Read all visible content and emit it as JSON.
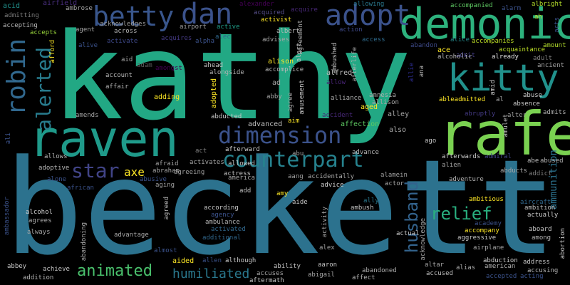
{
  "words": [
    {
      "text": "kathy",
      "color": "#22a884"
    },
    {
      "text": "beckett",
      "color": "#2c728e"
    },
    {
      "text": "rafe",
      "color": "#7ad151"
    },
    {
      "text": "raven",
      "color": "#1f9a8a"
    },
    {
      "text": "demonic",
      "color": "#2db27d"
    },
    {
      "text": "kitty",
      "color": "#21918c"
    },
    {
      "text": "adopt",
      "color": "#3b528b"
    },
    {
      "text": "dan",
      "color": "#3b528b"
    },
    {
      "text": "betty",
      "color": "#39568c"
    },
    {
      "text": "dimension",
      "color": "#3b528b"
    },
    {
      "text": "robin",
      "color": "#31688e"
    },
    {
      "text": "counterpart",
      "color": "#26828e"
    },
    {
      "text": "alerted",
      "color": "#287c8e"
    },
    {
      "text": "star",
      "color": "#414487"
    },
    {
      "text": "axe",
      "color": "#fde725"
    },
    {
      "text": "relief",
      "color": "#29af7f"
    },
    {
      "text": "husband",
      "color": "#33638d"
    },
    {
      "text": "animated",
      "color": "#4ac16d"
    },
    {
      "text": "humiliated",
      "color": "#2a788e"
    },
    {
      "text": "ammunition",
      "color": "#2c728e"
    },
    {
      "text": "acid",
      "color": "#21918c"
    },
    {
      "text": "airfield",
      "color": "#472d7b"
    },
    {
      "text": "admitting",
      "color": "#7e7e7e"
    },
    {
      "text": "accepting",
      "color": "#b8b8b8"
    },
    {
      "text": "accepts",
      "color": "#9bd93c"
    },
    {
      "text": "ambrose",
      "color": "#a8a8a8"
    },
    {
      "text": "acknowledges",
      "color": "#9a9a9a"
    },
    {
      "text": "agent",
      "color": "#a5a5a5"
    },
    {
      "text": "across",
      "color": "#b0b0b0"
    },
    {
      "text": "airport",
      "color": "#a0a0a0"
    },
    {
      "text": "active",
      "color": "#1f9e89"
    },
    {
      "text": "alec",
      "color": "#31688e"
    },
    {
      "text": "alexander",
      "color": "#440154"
    },
    {
      "text": "acquired",
      "color": "#58508d"
    },
    {
      "text": "acquire",
      "color": "#482878"
    },
    {
      "text": "activist",
      "color": "#fde725"
    },
    {
      "text": "allowing",
      "color": "#2a788e"
    },
    {
      "text": "accompanied",
      "color": "#5ec962"
    },
    {
      "text": "alarm",
      "color": "#3b528b"
    },
    {
      "text": "albright",
      "color": "#b5de2b"
    },
    {
      "text": "ah",
      "color": "#c2df23"
    },
    {
      "text": "action",
      "color": "#3e4989"
    },
    {
      "text": "access",
      "color": "#2f6c8e"
    },
    {
      "text": "abandon",
      "color": "#3e4a89"
    },
    {
      "text": "alice",
      "color": "#238a8d"
    },
    {
      "text": "accompanies",
      "color": "#bddf26"
    },
    {
      "text": "amount",
      "color": "#b4de2c"
    },
    {
      "text": "alive",
      "color": "#3b528b"
    },
    {
      "text": "activate",
      "color": "#3e4989"
    },
    {
      "text": "acquires",
      "color": "#443983"
    },
    {
      "text": "alpha",
      "color": "#3b528b"
    },
    {
      "text": "advises",
      "color": "#a6a6a6"
    },
    {
      "text": "albert",
      "color": "#b9b9b9"
    },
    {
      "text": "ace",
      "color": "#fde725"
    },
    {
      "text": "admit",
      "color": "#433e85"
    },
    {
      "text": "accompanies",
      "color": "#bddf26"
    },
    {
      "text": "acquaintance",
      "color": "#bddf26"
    },
    {
      "text": "adult",
      "color": "#7d7d7d"
    },
    {
      "text": "ancient",
      "color": "#a1a1a1"
    },
    {
      "text": "aid",
      "color": "#a0a0a0"
    },
    {
      "text": "adam",
      "color": "#5b5b5b"
    },
    {
      "text": "amongst",
      "color": "#440154"
    },
    {
      "text": "ahead",
      "color": "#c0c0c0"
    },
    {
      "text": "alongside",
      "color": "#b1b1b1"
    },
    {
      "text": "alison",
      "color": "#fde725"
    },
    {
      "text": "accomplice",
      "color": "#b8b8b8"
    },
    {
      "text": "afterlife",
      "color": "#b0b0b0"
    },
    {
      "text": "allie",
      "color": "#2c2c8e"
    },
    {
      "text": "already",
      "color": "#e0e0e0"
    },
    {
      "text": "alcoholic",
      "color": "#bcbcbc"
    },
    {
      "text": "account",
      "color": "#b8b8b8"
    },
    {
      "text": "affair",
      "color": "#b3b3b3"
    },
    {
      "text": "ad",
      "color": "#a9a9a9"
    },
    {
      "text": "alfred",
      "color": "#bababa"
    },
    {
      "text": "allow",
      "color": "#482475"
    },
    {
      "text": "adopted",
      "color": "#fde725"
    },
    {
      "text": "ableadmitted",
      "color": "#fde725"
    },
    {
      "text": "al",
      "color": "#a7a7a7"
    },
    {
      "text": "abuse",
      "color": "#d0d0d0"
    },
    {
      "text": "absence",
      "color": "#cbcbcb"
    },
    {
      "text": "admits",
      "color": "#adadad"
    },
    {
      "text": "adding",
      "color": "#fde725"
    },
    {
      "text": "abby",
      "color": "#a8a8a8"
    },
    {
      "text": "alliance",
      "color": "#b0b0b0"
    },
    {
      "text": "allison",
      "color": "#a6a6a6"
    },
    {
      "text": "amnesia",
      "color": "#adadad"
    },
    {
      "text": "abruptly",
      "color": "#443a83"
    },
    {
      "text": "alter",
      "color": "#9d9d9d"
    },
    {
      "text": "amends",
      "color": "#a5a5a5"
    },
    {
      "text": "abducted",
      "color": "#c9c9c9"
    },
    {
      "text": "aim",
      "color": "#fde725"
    },
    {
      "text": "accident",
      "color": "#482878"
    },
    {
      "text": "aged",
      "color": "#fde725"
    },
    {
      "text": "alley",
      "color": "#aaaaaa"
    },
    {
      "text": "affection",
      "color": "#5ec962"
    },
    {
      "text": "also",
      "color": "#a8a8a8"
    },
    {
      "text": "advanced",
      "color": "#bfbfbf"
    },
    {
      "text": "ago",
      "color": "#c2c2c2"
    },
    {
      "text": "afford",
      "color": "#fde725"
    },
    {
      "text": "alien",
      "color": "#a3a3a3"
    },
    {
      "text": "afterward",
      "color": "#cdcdcd"
    },
    {
      "text": "act",
      "color": "#7f7f7f"
    },
    {
      "text": "abu",
      "color": "#a0a0a0"
    },
    {
      "text": "advance",
      "color": "#b6b6b6"
    },
    {
      "text": "afterwards",
      "color": "#c6c6c6"
    },
    {
      "text": "admiral",
      "color": "#414487"
    },
    {
      "text": "abe",
      "color": "#bfbfbf"
    },
    {
      "text": "abused",
      "color": "#b5b5b5"
    },
    {
      "text": "allows",
      "color": "#b2b2b2"
    },
    {
      "text": "adoptive",
      "color": "#bababa"
    },
    {
      "text": "afraid",
      "color": "#a1a1a1"
    },
    {
      "text": "abraham",
      "color": "#a7a7a7"
    },
    {
      "text": "activates",
      "color": "#a5a5a5"
    },
    {
      "text": "allowed",
      "color": "#c9c9c9"
    },
    {
      "text": "actress",
      "color": "#c1c1c1"
    },
    {
      "text": "accidentally",
      "color": "#a7a7a7"
    },
    {
      "text": "alamein",
      "color": "#a0a0a0"
    },
    {
      "text": "aang",
      "color": "#9f9f9f"
    },
    {
      "text": "ambitious",
      "color": "#fde725"
    },
    {
      "text": "abducts",
      "color": "#a9a9a9"
    },
    {
      "text": "addict",
      "color": "#7b7b7b"
    },
    {
      "text": "alone",
      "color": "#3b528b"
    },
    {
      "text": "abusive",
      "color": "#3b528b"
    },
    {
      "text": "african",
      "color": "#3b528b"
    },
    {
      "text": "agreeing",
      "color": "#9d9d9d"
    },
    {
      "text": "aging",
      "color": "#a1a1a1"
    },
    {
      "text": "america",
      "color": "#a5a5a5"
    },
    {
      "text": "adventure",
      "color": "#b3b3b3"
    },
    {
      "text": "advice",
      "color": "#cfcfcf"
    },
    {
      "text": "actor",
      "color": "#a6a6a6"
    },
    {
      "text": "add",
      "color": "#c2c2c2"
    },
    {
      "text": "amy",
      "color": "#fde725"
    },
    {
      "text": "aide",
      "color": "#c6c6c6"
    },
    {
      "text": "agency",
      "color": "#3b528b"
    },
    {
      "text": "ambulance",
      "color": "#b4b4b4"
    },
    {
      "text": "according",
      "color": "#c7c7c7"
    },
    {
      "text": "activated",
      "color": "#31688e"
    },
    {
      "text": "additional",
      "color": "#31688e"
    },
    {
      "text": "ambitious",
      "color": "#fde725"
    },
    {
      "text": "academy",
      "color": "#3b528b"
    },
    {
      "text": "accompany",
      "color": "#fde725"
    },
    {
      "text": "aggressive",
      "color": "#c8c8c8"
    },
    {
      "text": "aircraft",
      "color": "#31688e"
    },
    {
      "text": "ambition",
      "color": "#c0c0c0"
    },
    {
      "text": "actually",
      "color": "#cdcdcd"
    },
    {
      "text": "aboard",
      "color": "#c4c4c4"
    },
    {
      "text": "among",
      "color": "#b5b5b5"
    },
    {
      "text": "alcohol",
      "color": "#cfcfcf"
    },
    {
      "text": "agrees",
      "color": "#aaaaaa"
    },
    {
      "text": "always",
      "color": "#a4a4a4"
    },
    {
      "text": "advantage",
      "color": "#a9a9a9"
    },
    {
      "text": "almost",
      "color": "#3b528b"
    },
    {
      "text": "allen",
      "color": "#3b528b"
    },
    {
      "text": "although",
      "color": "#c8c8c8"
    },
    {
      "text": "aided",
      "color": "#fde725"
    },
    {
      "text": "ability",
      "color": "#c1c1c1"
    },
    {
      "text": "accuses",
      "color": "#a7a7a7"
    },
    {
      "text": "aftermath",
      "color": "#c7c7c7"
    },
    {
      "text": "abandoned",
      "color": "#adadad"
    },
    {
      "text": "affect",
      "color": "#b2b2b2"
    },
    {
      "text": "aaron",
      "color": "#c2c2c2"
    },
    {
      "text": "alex",
      "color": "#a2a2a2"
    },
    {
      "text": "abigail",
      "color": "#a9a9a9"
    },
    {
      "text": "actual",
      "color": "#c8c8c8"
    },
    {
      "text": "altar",
      "color": "#a6a6a6"
    },
    {
      "text": "accused",
      "color": "#bfbfbf"
    },
    {
      "text": "alias",
      "color": "#aaaaaa"
    },
    {
      "text": "american",
      "color": "#b2b2b2"
    },
    {
      "text": "abduction",
      "color": "#cecece"
    },
    {
      "text": "accepted",
      "color": "#3b528b"
    },
    {
      "text": "acting",
      "color": "#3b528b"
    },
    {
      "text": "address",
      "color": "#c5c5c5"
    },
    {
      "text": "accusing",
      "color": "#b5b5b5"
    },
    {
      "text": "airplane",
      "color": "#a6a6a6"
    },
    {
      "text": "abbey",
      "color": "#c8c8c8"
    },
    {
      "text": "achieve",
      "color": "#c7c7c7"
    },
    {
      "text": "addition",
      "color": "#b1b1b1"
    },
    {
      "text": "ally",
      "color": "#2a788e"
    },
    {
      "text": "ambush",
      "color": "#c3c3c3"
    },
    {
      "text": "ambassador",
      "color": "#3b528b"
    },
    {
      "text": "abandoning",
      "color": "#aaaaaa"
    },
    {
      "text": "agreed",
      "color": "#b5b5b5"
    },
    {
      "text": "activity",
      "color": "#a5a5a5"
    },
    {
      "text": "acknowledge",
      "color": "#a0a0a0"
    },
    {
      "text": "abortion",
      "color": "#c8c8c8"
    },
    {
      "text": "amulet",
      "color": "#b5b5b5"
    },
    {
      "text": "amid",
      "color": "#c8c8c8"
    },
    {
      "text": "ali",
      "color": "#3b528b"
    },
    {
      "text": "ambushed",
      "color": "#c6c6c6"
    },
    {
      "text": "agreement",
      "color": "#b0b0b0"
    },
    {
      "text": "amusement",
      "color": "#c8c8c8"
    },
    {
      "text": "agree",
      "color": "#a7a7a7"
    },
    {
      "text": "acts",
      "color": "#3b528b"
    },
    {
      "text": "ana",
      "color": "#b3b3b3"
    },
    {
      "text": "alert",
      "color": "#c0c0c0"
    }
  ]
}
